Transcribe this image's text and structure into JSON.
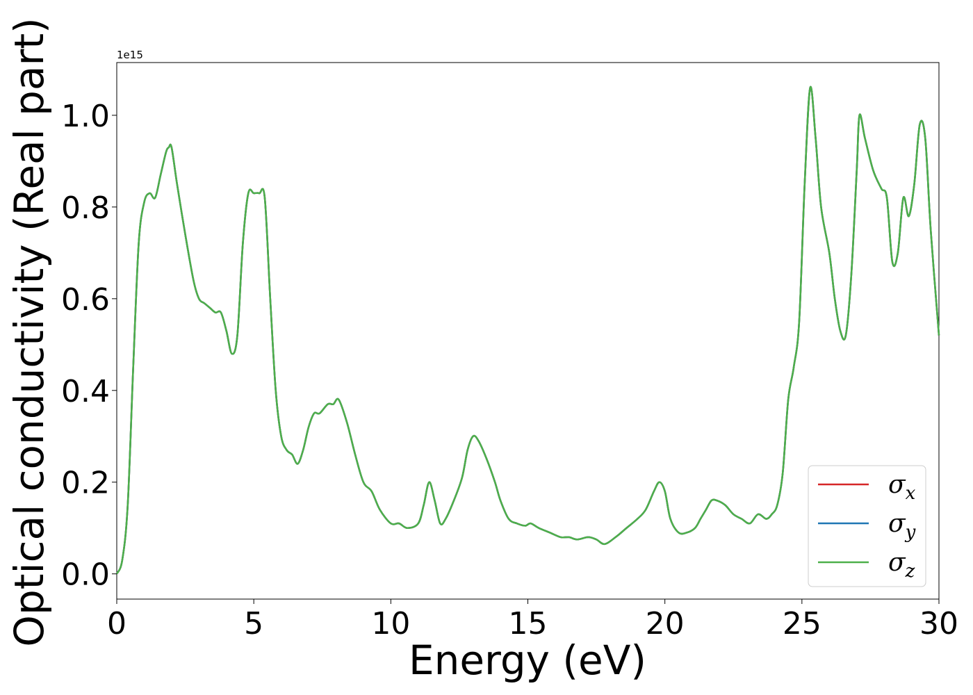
{
  "chart_data": {
    "type": "line",
    "xlabel": "Energy (eV)",
    "ylabel": "Optical conductivity (Real part)",
    "y_offset_text": "1e15",
    "xlim": [
      0,
      30
    ],
    "ylim": [
      -0.055,
      1.115
    ],
    "x_ticks": [
      0,
      5,
      10,
      15,
      20,
      25,
      30
    ],
    "x_tick_labels": [
      "0",
      "5",
      "10",
      "15",
      "20",
      "25",
      "30"
    ],
    "y_ticks": [
      0.0,
      0.2,
      0.4,
      0.6,
      0.8,
      1.0
    ],
    "y_tick_labels": [
      "0.0",
      "0.2",
      "0.4",
      "0.6",
      "0.8",
      "1.0"
    ],
    "grid": false,
    "legend_position": "lower-right",
    "x": [
      0,
      0.2,
      0.4,
      0.6,
      0.8,
      1.0,
      1.2,
      1.4,
      1.6,
      1.8,
      1.9,
      2.0,
      2.2,
      2.5,
      2.8,
      3.0,
      3.2,
      3.4,
      3.6,
      3.8,
      4.0,
      4.2,
      4.4,
      4.6,
      4.8,
      5.0,
      5.2,
      5.4,
      5.6,
      5.8,
      6.0,
      6.2,
      6.4,
      6.6,
      6.8,
      7.0,
      7.2,
      7.4,
      7.7,
      7.9,
      8.1,
      8.4,
      8.7,
      9.0,
      9.3,
      9.6,
      10.0,
      10.3,
      10.6,
      11.0,
      11.2,
      11.4,
      11.6,
      11.8,
      12.0,
      12.3,
      12.6,
      12.8,
      13.0,
      13.2,
      13.5,
      13.8,
      14.0,
      14.3,
      14.6,
      14.9,
      15.1,
      15.4,
      15.8,
      16.2,
      16.5,
      16.8,
      17.2,
      17.5,
      17.8,
      18.2,
      18.6,
      19.0,
      19.3,
      19.6,
      19.8,
      20.0,
      20.2,
      20.5,
      20.8,
      21.1,
      21.3,
      21.5,
      21.7,
      21.9,
      22.2,
      22.5,
      22.8,
      23.1,
      23.4,
      23.7,
      23.9,
      24.1,
      24.3,
      24.5,
      24.7,
      24.9,
      25.1,
      25.3,
      25.5,
      25.7,
      26.0,
      26.2,
      26.4,
      26.6,
      26.8,
      27.0,
      27.1,
      27.3,
      27.6,
      27.9,
      28.1,
      28.3,
      28.5,
      28.7,
      28.9,
      29.1,
      29.3,
      29.5,
      29.7,
      30.0
    ],
    "series": [
      {
        "name": "σ_x",
        "color": "#d62728",
        "values": [
          0.0,
          0.03,
          0.15,
          0.45,
          0.72,
          0.81,
          0.83,
          0.82,
          0.87,
          0.92,
          0.93,
          0.93,
          0.85,
          0.74,
          0.64,
          0.6,
          0.59,
          0.58,
          0.57,
          0.57,
          0.53,
          0.48,
          0.52,
          0.72,
          0.83,
          0.83,
          0.83,
          0.82,
          0.6,
          0.4,
          0.3,
          0.27,
          0.26,
          0.24,
          0.27,
          0.32,
          0.35,
          0.35,
          0.37,
          0.37,
          0.38,
          0.33,
          0.26,
          0.2,
          0.18,
          0.14,
          0.11,
          0.11,
          0.1,
          0.11,
          0.15,
          0.2,
          0.16,
          0.11,
          0.12,
          0.16,
          0.21,
          0.27,
          0.3,
          0.29,
          0.25,
          0.2,
          0.16,
          0.12,
          0.11,
          0.105,
          0.11,
          0.1,
          0.09,
          0.08,
          0.08,
          0.075,
          0.08,
          0.075,
          0.065,
          0.08,
          0.1,
          0.12,
          0.14,
          0.18,
          0.2,
          0.18,
          0.12,
          0.09,
          0.09,
          0.1,
          0.12,
          0.14,
          0.16,
          0.16,
          0.15,
          0.13,
          0.12,
          0.11,
          0.13,
          0.12,
          0.13,
          0.15,
          0.22,
          0.38,
          0.45,
          0.55,
          0.85,
          1.06,
          0.95,
          0.8,
          0.7,
          0.6,
          0.53,
          0.52,
          0.65,
          0.88,
          1.0,
          0.95,
          0.88,
          0.84,
          0.82,
          0.68,
          0.7,
          0.82,
          0.78,
          0.85,
          0.98,
          0.95,
          0.75,
          0.52
        ]
      },
      {
        "name": "σ_y",
        "color": "#1f77b4",
        "values": [
          0.0,
          0.03,
          0.15,
          0.45,
          0.72,
          0.81,
          0.83,
          0.82,
          0.87,
          0.92,
          0.93,
          0.93,
          0.85,
          0.74,
          0.64,
          0.6,
          0.59,
          0.58,
          0.57,
          0.57,
          0.53,
          0.48,
          0.52,
          0.72,
          0.83,
          0.83,
          0.83,
          0.82,
          0.6,
          0.4,
          0.3,
          0.27,
          0.26,
          0.24,
          0.27,
          0.32,
          0.35,
          0.35,
          0.37,
          0.37,
          0.38,
          0.33,
          0.26,
          0.2,
          0.18,
          0.14,
          0.11,
          0.11,
          0.1,
          0.11,
          0.15,
          0.2,
          0.16,
          0.11,
          0.12,
          0.16,
          0.21,
          0.27,
          0.3,
          0.29,
          0.25,
          0.2,
          0.16,
          0.12,
          0.11,
          0.105,
          0.11,
          0.1,
          0.09,
          0.08,
          0.08,
          0.075,
          0.08,
          0.075,
          0.065,
          0.08,
          0.1,
          0.12,
          0.14,
          0.18,
          0.2,
          0.18,
          0.12,
          0.09,
          0.09,
          0.1,
          0.12,
          0.14,
          0.16,
          0.16,
          0.15,
          0.13,
          0.12,
          0.11,
          0.13,
          0.12,
          0.13,
          0.15,
          0.22,
          0.38,
          0.45,
          0.55,
          0.85,
          1.06,
          0.95,
          0.8,
          0.7,
          0.6,
          0.53,
          0.52,
          0.65,
          0.88,
          1.0,
          0.95,
          0.88,
          0.84,
          0.82,
          0.68,
          0.7,
          0.82,
          0.78,
          0.85,
          0.98,
          0.95,
          0.75,
          0.52
        ]
      },
      {
        "name": "σ_z",
        "color": "#4daf4a",
        "values": [
          0.0,
          0.03,
          0.15,
          0.45,
          0.72,
          0.81,
          0.83,
          0.82,
          0.87,
          0.92,
          0.93,
          0.93,
          0.85,
          0.74,
          0.64,
          0.6,
          0.59,
          0.58,
          0.57,
          0.57,
          0.53,
          0.48,
          0.52,
          0.72,
          0.83,
          0.83,
          0.83,
          0.82,
          0.6,
          0.4,
          0.3,
          0.27,
          0.26,
          0.24,
          0.27,
          0.32,
          0.35,
          0.35,
          0.37,
          0.37,
          0.38,
          0.33,
          0.26,
          0.2,
          0.18,
          0.14,
          0.11,
          0.11,
          0.1,
          0.11,
          0.15,
          0.2,
          0.16,
          0.11,
          0.12,
          0.16,
          0.21,
          0.27,
          0.3,
          0.29,
          0.25,
          0.2,
          0.16,
          0.12,
          0.11,
          0.105,
          0.11,
          0.1,
          0.09,
          0.08,
          0.08,
          0.075,
          0.08,
          0.075,
          0.065,
          0.08,
          0.1,
          0.12,
          0.14,
          0.18,
          0.2,
          0.18,
          0.12,
          0.09,
          0.09,
          0.1,
          0.12,
          0.14,
          0.16,
          0.16,
          0.15,
          0.13,
          0.12,
          0.11,
          0.13,
          0.12,
          0.13,
          0.15,
          0.22,
          0.38,
          0.45,
          0.55,
          0.85,
          1.06,
          0.95,
          0.8,
          0.7,
          0.6,
          0.53,
          0.52,
          0.65,
          0.88,
          1.0,
          0.95,
          0.88,
          0.84,
          0.82,
          0.68,
          0.7,
          0.82,
          0.78,
          0.85,
          0.98,
          0.95,
          0.75,
          0.52
        ]
      }
    ],
    "legend": [
      {
        "sym": "σ",
        "sub": "x",
        "color": "#d62728"
      },
      {
        "sym": "σ",
        "sub": "y",
        "color": "#1f77b4"
      },
      {
        "sym": "σ",
        "sub": "z",
        "color": "#4daf4a"
      }
    ]
  }
}
